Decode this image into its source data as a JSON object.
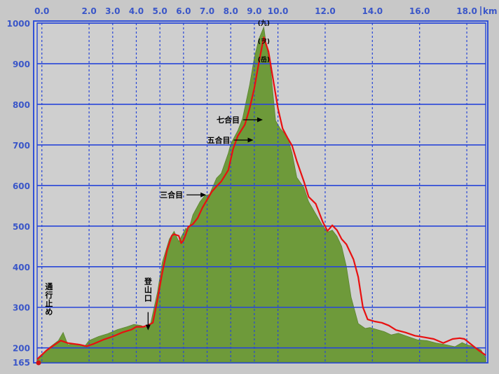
{
  "chart_data": {
    "type": "area",
    "title": "",
    "xlabel": "",
    "ylabel": "",
    "x_unit": "km",
    "xlim": [
      -0.2,
      18.8
    ],
    "ylim": [
      165,
      1000
    ],
    "x_ticks": [
      "0.0",
      "2.0",
      "3.0",
      "4.0",
      "5.0",
      "6.0",
      "7.0",
      "8.0",
      "9.0",
      "10.0",
      "12.0",
      "14.0",
      "16.0",
      "18.0"
    ],
    "x_tick_values": [
      0,
      2,
      3,
      4,
      5,
      6,
      7,
      8,
      9,
      10,
      12,
      14,
      16,
      18
    ],
    "y_ticks": [
      "1000",
      "900",
      "800",
      "700",
      "600",
      "500",
      "400",
      "300",
      "200",
      "165"
    ],
    "y_tick_values": [
      1000,
      900,
      800,
      700,
      600,
      500,
      400,
      300,
      200,
      165
    ],
    "grid": true,
    "colors": {
      "fill": "#6e9a3a",
      "line": "#e81010",
      "grid": "#2846d8",
      "plot_bg": "#cfcfcf",
      "frame": "#3050d8",
      "ticks": "#3a56c8"
    },
    "series": [
      {
        "kind": "filled-area",
        "x": [
          -0.2,
          0.0,
          0.3,
          0.7,
          0.9,
          1.1,
          1.5,
          1.8,
          2.0,
          2.4,
          2.8,
          3.2,
          3.6,
          3.9,
          4.2,
          4.4,
          4.6,
          4.9,
          5.1,
          5.4,
          5.6,
          5.8,
          5.9,
          6.1,
          6.2,
          6.4,
          6.7,
          6.9,
          7.1,
          7.4,
          7.6,
          7.9,
          8.0,
          8.3,
          8.5,
          8.8,
          9.0,
          9.2,
          9.4,
          9.5,
          9.7,
          9.9,
          10.1,
          10.4,
          10.6,
          10.8,
          11.1,
          11.3,
          11.6,
          11.9,
          12.1,
          12.3,
          12.5,
          12.7,
          12.9,
          13.1,
          13.4,
          13.7,
          13.9,
          14.2,
          14.5,
          14.8,
          15.1,
          15.5,
          15.9,
          16.3,
          16.7,
          17.1,
          17.5,
          17.8,
          18.0,
          18.3,
          18.6,
          18.8
        ],
        "y": [
          170,
          180,
          200,
          218,
          238,
          208,
          210,
          203,
          218,
          228,
          235,
          245,
          252,
          258,
          255,
          250,
          258,
          338,
          410,
          468,
          487,
          462,
          473,
          495,
          488,
          528,
          560,
          575,
          578,
          618,
          630,
          680,
          702,
          735,
          765,
          848,
          915,
          962,
          990,
          950,
          880,
          760,
          740,
          720,
          680,
          620,
          595,
          560,
          530,
          500,
          485,
          490,
          475,
          450,
          400,
          325,
          260,
          248,
          250,
          245,
          240,
          232,
          236,
          228,
          220,
          218,
          212,
          208,
          203,
          213,
          208,
          203,
          195,
          175
        ]
      },
      {
        "kind": "line",
        "x": [
          -0.2,
          0.2,
          0.6,
          0.8,
          1.1,
          1.6,
          1.9,
          2.2,
          2.6,
          3.0,
          3.4,
          3.8,
          4.0,
          4.3,
          4.5,
          4.7,
          4.9,
          5.1,
          5.3,
          5.5,
          5.6,
          5.8,
          5.9,
          6.0,
          6.1,
          6.2,
          6.4,
          6.6,
          6.8,
          7.0,
          7.2,
          7.4,
          7.6,
          7.9,
          8.1,
          8.3,
          8.6,
          8.8,
          9.0,
          9.2,
          9.4,
          9.6,
          9.8,
          10.0,
          10.2,
          10.4,
          10.6,
          10.8,
          11.1,
          11.3,
          11.6,
          11.9,
          12.1,
          12.3,
          12.5,
          12.7,
          12.9,
          13.2,
          13.4,
          13.6,
          13.8,
          14.1,
          14.4,
          14.7,
          15.0,
          15.4,
          15.8,
          16.2,
          16.6,
          17.0,
          17.4,
          17.7,
          17.9,
          18.2,
          18.5,
          18.8
        ],
        "y": [
          172,
          194,
          210,
          218,
          212,
          208,
          204,
          210,
          220,
          228,
          238,
          245,
          252,
          252,
          256,
          262,
          320,
          385,
          440,
          476,
          480,
          476,
          458,
          465,
          480,
          498,
          505,
          520,
          545,
          565,
          585,
          598,
          610,
          638,
          690,
          722,
          750,
          790,
          840,
          905,
          965,
          930,
          860,
          790,
          740,
          718,
          698,
          660,
          610,
          572,
          555,
          510,
          488,
          502,
          490,
          468,
          455,
          418,
          375,
          300,
          270,
          265,
          262,
          255,
          244,
          238,
          230,
          226,
          222,
          212,
          222,
          224,
          222,
          208,
          194,
          182
        ]
      }
    ],
    "annotations": [
      {
        "text": "通行止め",
        "x": 0.3,
        "y": 262
      },
      {
        "text": "登山口",
        "x": 4.5,
        "y": 295
      },
      {
        "text": "三合目",
        "x": 5.0,
        "y": 570
      },
      {
        "text": "五合目",
        "x": 7.0,
        "y": 705
      },
      {
        "text": "七合目",
        "x": 7.4,
        "y": 755
      },
      {
        "text": "(九)",
        "x": 9.4,
        "y": 995
      },
      {
        "text": "(ヲ)",
        "x": 9.4,
        "y": 950
      },
      {
        "text": "(岳)",
        "x": 9.4,
        "y": 905
      }
    ]
  }
}
